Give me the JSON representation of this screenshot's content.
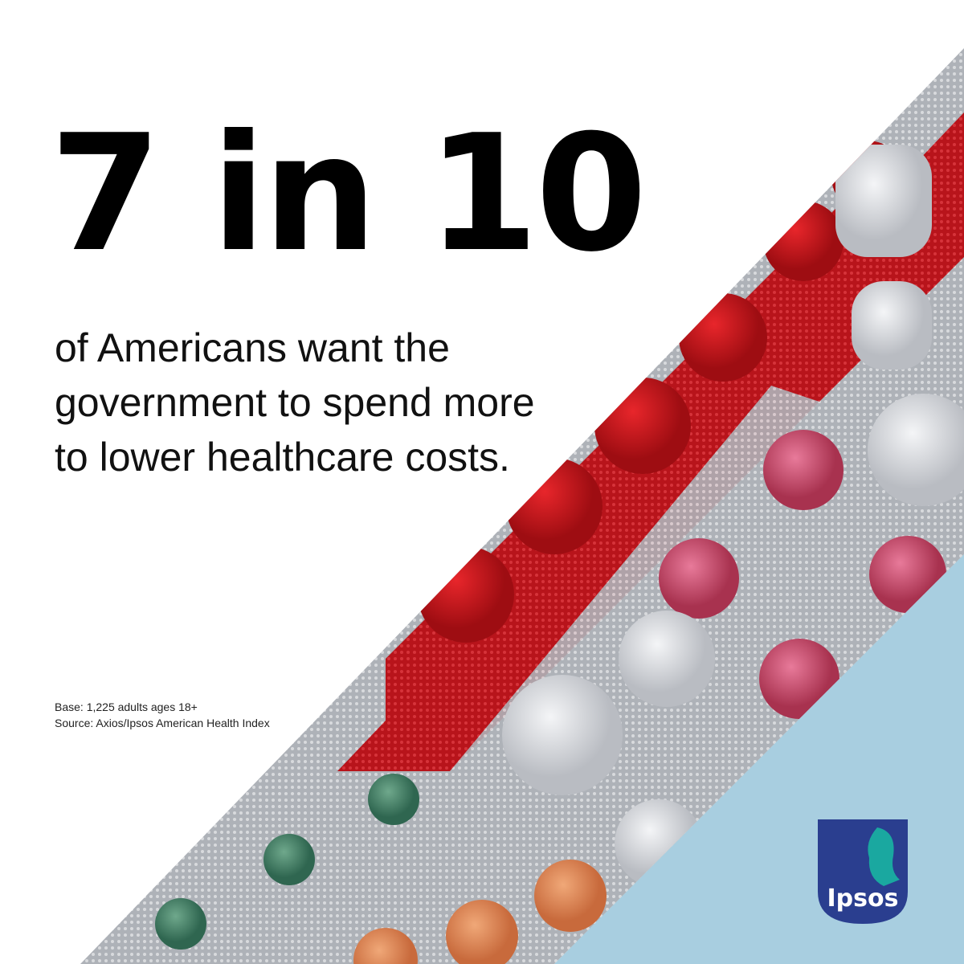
{
  "headline": {
    "stat": "7 in 10",
    "lines": [
      "of Americans want the",
      "government to spend more",
      "to lower healthcare costs."
    ]
  },
  "footnote": {
    "lines": [
      "Base: 1,225 adults ages 18+",
      "Source: Axios/Ipsos American Health Index"
    ]
  },
  "logo": {
    "text": "Ipsos"
  }
}
